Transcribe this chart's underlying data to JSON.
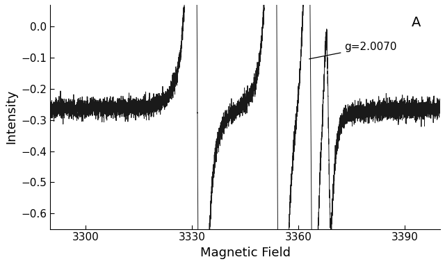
{
  "xlabel": "Magnetic Field",
  "ylabel": "Intensity",
  "xlim": [
    3290,
    3400
  ],
  "ylim": [
    -0.65,
    0.07
  ],
  "xticks": [
    3300,
    3330,
    3360,
    3390
  ],
  "yticks": [
    0.0,
    -0.1,
    -0.2,
    -0.3,
    -0.4,
    -0.5,
    -0.6
  ],
  "label_A": "A",
  "annotation": "g=2.0070",
  "baseline": -0.265,
  "noise_amp": 0.015,
  "background_color": "#ffffff",
  "line_color": "#1a1a1a",
  "seed": 42
}
